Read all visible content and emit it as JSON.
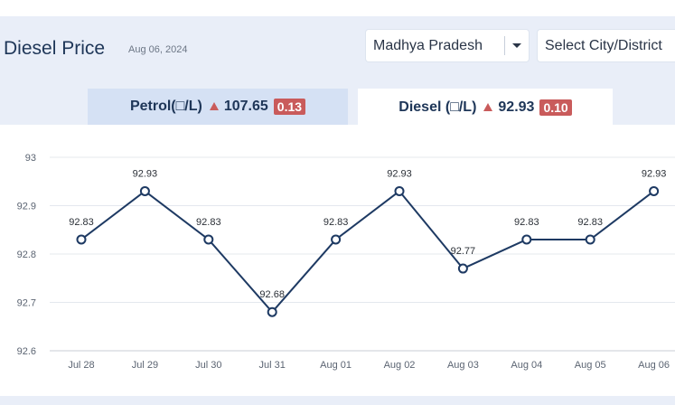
{
  "header": {
    "title": "Diesel Price",
    "date": "Aug 06, 2024"
  },
  "filters": {
    "state": "Madhya Pradesh",
    "city_placeholder": "Select City/District"
  },
  "tabs": [
    {
      "fuel": "Petrol(□/L)",
      "price": "107.65",
      "change": "0.13",
      "active": false
    },
    {
      "fuel": "Diesel (□/L)",
      "price": "92.93",
      "change": "0.10",
      "active": true
    }
  ],
  "colors": {
    "line": "#1e3a63",
    "badge": "#c95b5b",
    "active_tab": "#ffffff",
    "inactive_tab": "#d5e1f4"
  },
  "chart_data": {
    "type": "line",
    "categories": [
      "Jul 28",
      "Jul 29",
      "Jul 30",
      "Jul 31",
      "Aug 01",
      "Aug 02",
      "Aug 03",
      "Aug 04",
      "Aug 05",
      "Aug 06"
    ],
    "series": [
      {
        "values": [
          92.83,
          92.93,
          92.83,
          92.68,
          92.83,
          92.93,
          92.77,
          92.83,
          92.83,
          92.93
        ]
      }
    ],
    "data_labels": [
      "92.83",
      "92.93",
      "92.83",
      "92.68",
      "92.83",
      "92.93",
      "92.77",
      "92.83",
      "92.83",
      "92.93"
    ],
    "y_ticks": [
      "92.6",
      "92.7",
      "92.8",
      "92.9",
      "93"
    ],
    "ylim": [
      92.6,
      93
    ],
    "grid": true,
    "legend": "none"
  }
}
